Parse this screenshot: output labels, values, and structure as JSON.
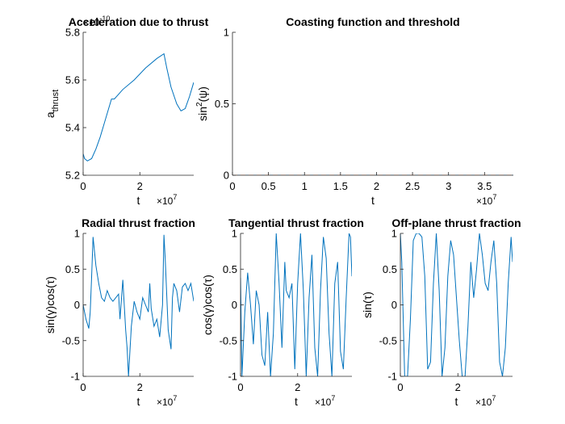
{
  "chart_data": [
    {
      "type": "line",
      "title": "Acceleration due to thrust",
      "xlabel": "t",
      "ylabel": "a_thrust",
      "x_multiplier": "×10^7",
      "y_multiplier": "×10^-10",
      "xlim": [
        0,
        3.9
      ],
      "ylim": [
        5.2,
        5.8
      ],
      "xticks": [
        "0",
        "2"
      ],
      "yticks": [
        "5.2",
        "5.4",
        "5.6",
        "5.8"
      ],
      "line_color": "#0072BD",
      "series": [
        {
          "x": [
            0,
            0.05,
            0.15,
            0.3,
            0.45,
            0.6,
            0.75,
            0.9,
            1.0,
            1.1,
            1.4,
            1.8,
            2.2,
            2.6,
            2.85,
            2.95,
            3.1,
            3.3,
            3.45,
            3.6,
            3.75,
            3.9
          ],
          "y": [
            5.29,
            5.27,
            5.26,
            5.27,
            5.31,
            5.36,
            5.42,
            5.48,
            5.52,
            5.52,
            5.56,
            5.6,
            5.65,
            5.69,
            5.71,
            5.65,
            5.57,
            5.5,
            5.47,
            5.48,
            5.53,
            5.59
          ]
        }
      ]
    },
    {
      "type": "line",
      "title": "Coasting function and threshold",
      "xlabel": "t",
      "ylabel": "sin^2(ψ)",
      "x_multiplier": "×10^7",
      "xlim": [
        0,
        3.9
      ],
      "ylim": [
        0,
        1
      ],
      "xticks": [
        "0",
        "0.5",
        "1",
        "1.5",
        "2",
        "2.5",
        "3",
        "3.5"
      ],
      "yticks": [
        "0",
        "0.5",
        "1"
      ],
      "series": [
        {
          "x": [
            0,
            3.9
          ],
          "y": [
            0,
            0
          ],
          "color": "#0072BD",
          "style": "solid"
        },
        {
          "x": [
            0,
            3.9
          ],
          "y": [
            0,
            0
          ],
          "color": "#D95319",
          "style": "dashed"
        }
      ]
    },
    {
      "type": "line",
      "title": "Radial thrust fraction",
      "xlabel": "t",
      "ylabel": "sin(γ)cos(τ)",
      "x_multiplier": "×10^7",
      "xlim": [
        0,
        3.9
      ],
      "ylim": [
        -1,
        1
      ],
      "xticks": [
        "0",
        "2"
      ],
      "yticks": [
        "-1",
        "-0.5",
        "0",
        "0.5",
        "1"
      ],
      "series": [
        {
          "x": [
            0,
            0.1,
            0.2,
            0.25,
            0.3,
            0.35,
            0.45,
            0.55,
            0.65,
            0.75,
            0.85,
            0.95,
            1.05,
            1.15,
            1.25,
            1.3,
            1.4,
            1.5,
            1.55,
            1.6,
            1.7,
            1.8,
            1.9,
            2.0,
            2.1,
            2.2,
            2.3,
            2.35,
            2.4,
            2.5,
            2.6,
            2.7,
            2.8,
            2.85,
            2.9,
            3.0,
            3.1,
            3.15,
            3.2,
            3.3,
            3.4,
            3.5,
            3.6,
            3.7,
            3.8,
            3.9
          ],
          "y": [
            0.0,
            -0.2,
            -0.33,
            -0.1,
            0.4,
            0.95,
            0.55,
            0.3,
            0.1,
            0.05,
            0.2,
            0.1,
            0.05,
            0.1,
            0.15,
            -0.2,
            0.35,
            -0.35,
            -0.6,
            -1.0,
            -0.3,
            0.05,
            -0.1,
            -0.2,
            0.1,
            0.0,
            -0.1,
            0.3,
            -0.05,
            -0.3,
            -0.2,
            -0.45,
            0.0,
            0.98,
            0.6,
            -0.35,
            -0.62,
            0.1,
            0.3,
            0.2,
            -0.1,
            0.25,
            0.3,
            0.2,
            0.3,
            0.05
          ]
        }
      ]
    },
    {
      "type": "line",
      "title": "Tangential thrust fraction",
      "xlabel": "t",
      "ylabel": "cos(γ)cos(τ)",
      "x_multiplier": "×10^7",
      "xlim": [
        0,
        3.9
      ],
      "ylim": [
        -1,
        1
      ],
      "xticks": [
        "0",
        "2"
      ],
      "yticks": [
        "-1",
        "-0.5",
        "0",
        "0.5",
        "1"
      ],
      "series": [
        {
          "x": [
            0,
            0.05,
            0.15,
            0.25,
            0.35,
            0.45,
            0.55,
            0.65,
            0.75,
            0.85,
            0.95,
            1.05,
            1.15,
            1.25,
            1.35,
            1.45,
            1.55,
            1.6,
            1.7,
            1.8,
            1.9,
            2.0,
            2.1,
            2.2,
            2.3,
            2.4,
            2.5,
            2.6,
            2.7,
            2.8,
            2.9,
            3.0,
            3.1,
            3.2,
            3.3,
            3.4,
            3.5,
            3.6,
            3.7,
            3.8,
            3.85,
            3.9
          ],
          "y": [
            0.38,
            -1.0,
            -0.1,
            0.45,
            0.0,
            -0.55,
            0.2,
            0.0,
            -0.7,
            -0.85,
            -0.1,
            -1.0,
            -0.4,
            1.0,
            0.3,
            -0.6,
            0.6,
            0.2,
            0.1,
            0.3,
            -0.9,
            0.3,
            1.0,
            0.2,
            -1.0,
            0.1,
            0.7,
            -0.6,
            -1.0,
            0.2,
            0.95,
            0.65,
            -0.4,
            -1.0,
            0.3,
            0.6,
            -0.65,
            -0.9,
            0.1,
            1.0,
            0.95,
            0.4
          ]
        }
      ]
    },
    {
      "type": "line",
      "title": "Off-plane thrust fraction",
      "xlabel": "t",
      "ylabel": "sin(τ)",
      "x_multiplier": "×10^7",
      "xlim": [
        0,
        3.9
      ],
      "ylim": [
        -1,
        1
      ],
      "xticks": [
        "0",
        "2"
      ],
      "yticks": [
        "-1",
        "-0.5",
        "0",
        "0.5",
        "1"
      ],
      "series": [
        {
          "x": [
            0,
            0.05,
            0.15,
            0.25,
            0.35,
            0.45,
            0.55,
            0.65,
            0.75,
            0.85,
            0.95,
            1.05,
            1.15,
            1.25,
            1.35,
            1.45,
            1.55,
            1.65,
            1.75,
            1.85,
            1.95,
            2.05,
            2.15,
            2.25,
            2.35,
            2.45,
            2.55,
            2.65,
            2.75,
            2.85,
            2.95,
            3.05,
            3.15,
            3.25,
            3.35,
            3.45,
            3.55,
            3.65,
            3.75,
            3.85,
            3.9
          ],
          "y": [
            1.0,
            0.6,
            -1.0,
            -1.0,
            -0.2,
            0.9,
            1.0,
            1.0,
            0.95,
            0.4,
            -0.9,
            -0.8,
            0.3,
            1.0,
            0.2,
            -1.0,
            -0.6,
            0.4,
            0.9,
            0.7,
            0.1,
            -0.5,
            -1.0,
            -1.0,
            -0.3,
            0.6,
            0.1,
            0.5,
            1.0,
            0.7,
            0.3,
            0.2,
            0.6,
            0.9,
            0.3,
            -0.8,
            -1.0,
            -0.6,
            0.3,
            0.95,
            0.6
          ]
        }
      ]
    }
  ]
}
